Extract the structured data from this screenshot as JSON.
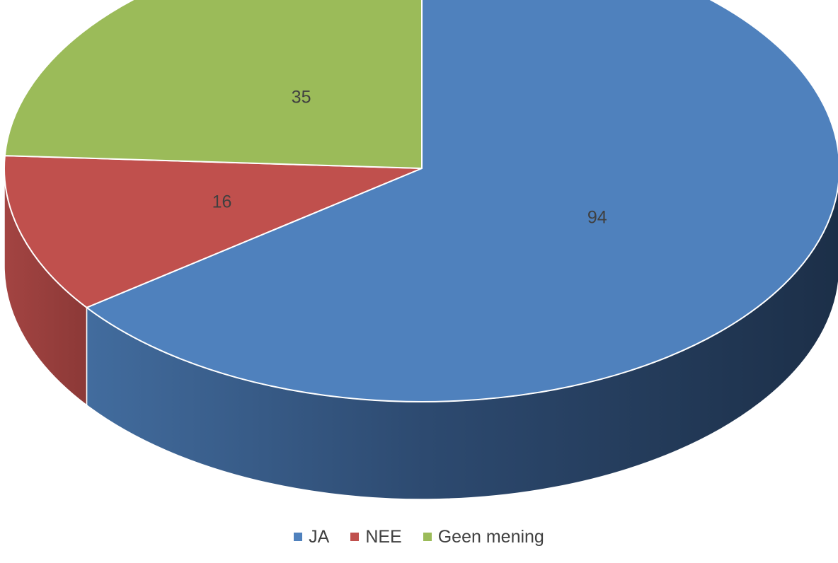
{
  "chart_data": {
    "type": "pie",
    "style": "3d",
    "categories": [
      "JA",
      "NEE",
      "Geen mening"
    ],
    "values": [
      94,
      16,
      35
    ],
    "colors": [
      "#4F81BD",
      "#C0504D",
      "#9BBB59"
    ],
    "data_labels": [
      "94",
      "16",
      "35"
    ],
    "legend_position": "bottom",
    "title": ""
  }
}
